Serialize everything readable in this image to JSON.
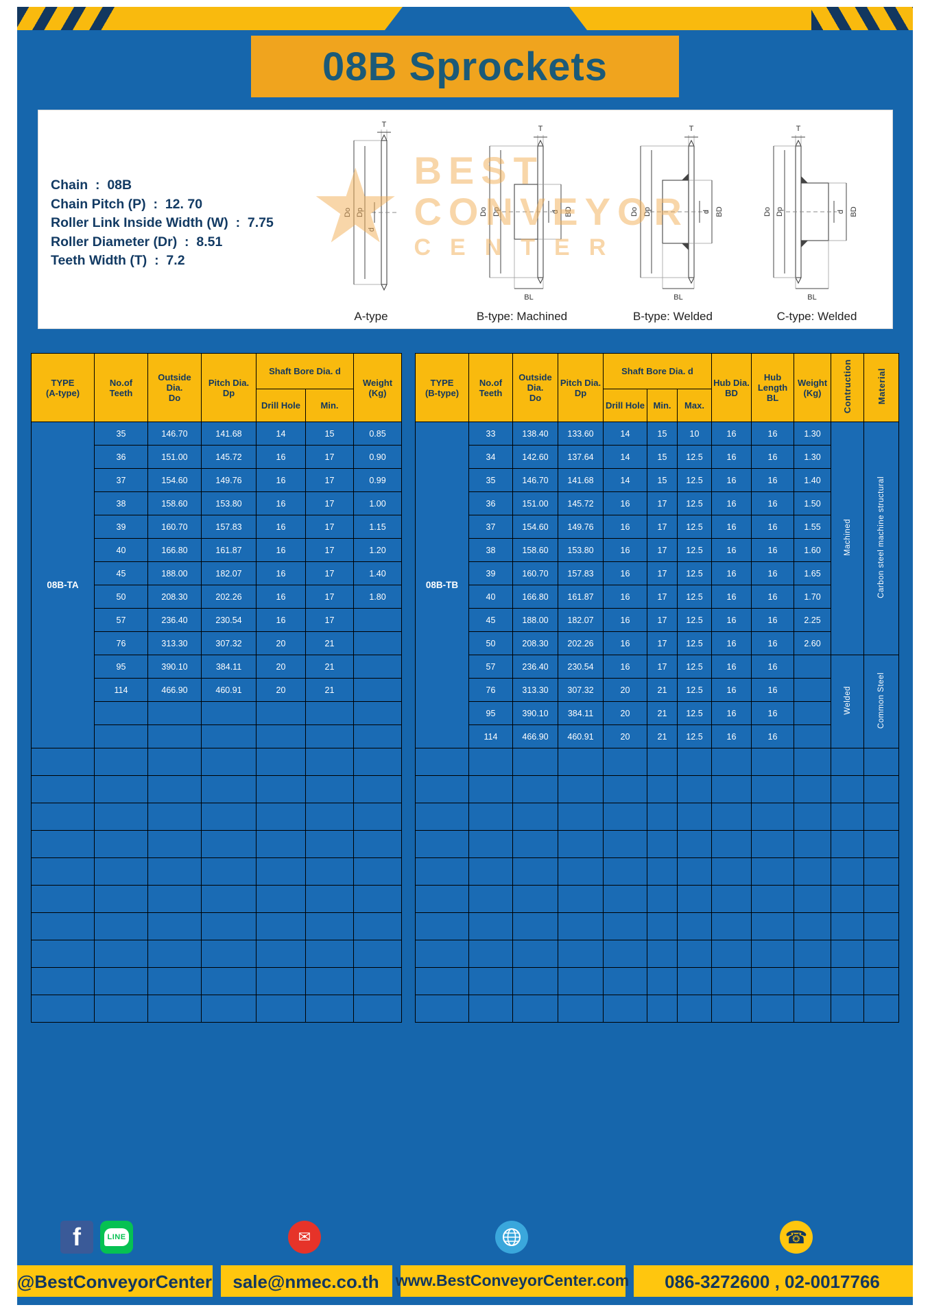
{
  "banner": {
    "title": "08B Sprockets"
  },
  "specs": {
    "lines": [
      "Chain  :  08B",
      "Chain Pitch (P)  :  12. 70",
      "Roller Link Inside Width (W)  :  7.75",
      "Roller Diameter (Dr)  :  8.51",
      "Teeth Width (T)  :  7.2"
    ]
  },
  "watermark": {
    "line1": "BEST",
    "line2": "CONVEYOR",
    "line3": "CENTER",
    "star": "★"
  },
  "diagrams": {
    "captions": [
      "A-type",
      "B-type: Machined",
      "B-type: Welded",
      "C-type: Welded"
    ],
    "labels": {
      "t": "T",
      "do": "Do",
      "dp": "Dp",
      "d": "d",
      "bd": "BD",
      "bl": "BL"
    }
  },
  "colors": {
    "page_blue": "#1666ac",
    "cell_blue": "#1a6bb4",
    "header_yellow": "#f9ba0e",
    "banner_orange": "#f0a41e",
    "footer_yellow": "#ffc60e",
    "navy_text": "#12375f",
    "title_teal": "#1b5a78"
  },
  "tables": [
    {
      "id": "table-a",
      "type_label": "08B-TA",
      "header": {
        "type": "TYPE\n(A-type)",
        "teeth": "No.of\nTeeth",
        "outside": "Outside\nDia.\nDo",
        "pitch": "Pitch Dia.\nDp",
        "shaft": "Shaft Bore Dia. d",
        "drill": "Drill Hole",
        "min": "Min.",
        "weight": "Weight\n(Kg)"
      },
      "rows": [
        [
          "35",
          "146.70",
          "141.68",
          "14",
          "15",
          "0.85"
        ],
        [
          "36",
          "151.00",
          "145.72",
          "16",
          "17",
          "0.90"
        ],
        [
          "37",
          "154.60",
          "149.76",
          "16",
          "17",
          "0.99"
        ],
        [
          "38",
          "158.60",
          "153.80",
          "16",
          "17",
          "1.00"
        ],
        [
          "39",
          "160.70",
          "157.83",
          "16",
          "17",
          "1.15"
        ],
        [
          "40",
          "166.80",
          "161.87",
          "16",
          "17",
          "1.20"
        ],
        [
          "45",
          "188.00",
          "182.07",
          "16",
          "17",
          "1.40"
        ],
        [
          "50",
          "208.30",
          "202.26",
          "16",
          "17",
          "1.80"
        ],
        [
          "57",
          "236.40",
          "230.54",
          "16",
          "17",
          ""
        ],
        [
          "76",
          "313.30",
          "307.32",
          "20",
          "21",
          ""
        ],
        [
          "95",
          "390.10",
          "384.11",
          "20",
          "21",
          ""
        ],
        [
          "114",
          "466.90",
          "460.91",
          "20",
          "21",
          ""
        ]
      ],
      "empty_body_rows": 2,
      "trailing_empty_rows": 10,
      "cols_data": 6,
      "cols_total": 7
    },
    {
      "id": "table-b",
      "type_label": "08B-TB",
      "header": {
        "type": "TYPE\n(B-type)",
        "teeth": "No.of\nTeeth",
        "outside": "Outside\nDia.\nDo",
        "pitch": "Pitch Dia.\nDp",
        "shaft": "Shaft Bore Dia. d",
        "drill": "Drill Hole",
        "min": "Min.",
        "max": "Max.",
        "hub_dia": "Hub Dia.\nBD",
        "hub_len": "Hub\nLength\nBL",
        "weight": "Weight\n(Kg)",
        "contruction": "Contruction",
        "material": "Material"
      },
      "rows": [
        [
          "33",
          "138.40",
          "133.60",
          "14",
          "15",
          "10",
          "16",
          "16",
          "1.30"
        ],
        [
          "34",
          "142.60",
          "137.64",
          "14",
          "15",
          "12.5",
          "16",
          "16",
          "1.30"
        ],
        [
          "35",
          "146.70",
          "141.68",
          "14",
          "15",
          "12.5",
          "16",
          "16",
          "1.40"
        ],
        [
          "36",
          "151.00",
          "145.72",
          "16",
          "17",
          "12.5",
          "16",
          "16",
          "1.50"
        ],
        [
          "37",
          "154.60",
          "149.76",
          "16",
          "17",
          "12.5",
          "16",
          "16",
          "1.55"
        ],
        [
          "38",
          "158.60",
          "153.80",
          "16",
          "17",
          "12.5",
          "16",
          "16",
          "1.60"
        ],
        [
          "39",
          "160.70",
          "157.83",
          "16",
          "17",
          "12.5",
          "16",
          "16",
          "1.65"
        ],
        [
          "40",
          "166.80",
          "161.87",
          "16",
          "17",
          "12.5",
          "16",
          "16",
          "1.70"
        ],
        [
          "45",
          "188.00",
          "182.07",
          "16",
          "17",
          "12.5",
          "16",
          "16",
          "2.25"
        ],
        [
          "50",
          "208.30",
          "202.26",
          "16",
          "17",
          "12.5",
          "16",
          "16",
          "2.60"
        ],
        [
          "57",
          "236.40",
          "230.54",
          "16",
          "17",
          "12.5",
          "16",
          "16",
          ""
        ],
        [
          "76",
          "313.30",
          "307.32",
          "20",
          "21",
          "12.5",
          "16",
          "16",
          ""
        ],
        [
          "95",
          "390.10",
          "384.11",
          "20",
          "21",
          "12.5",
          "16",
          "16",
          ""
        ],
        [
          "114",
          "466.90",
          "460.91",
          "20",
          "21",
          "12.5",
          "16",
          "16",
          ""
        ]
      ],
      "groups": [
        {
          "name": "contruction-cell",
          "segments": [
            {
              "label": "Machined",
              "span": 10
            },
            {
              "label": "Welded",
              "span": 4
            }
          ]
        },
        {
          "name": "material-cell",
          "segments": [
            {
              "label": "Carbon steel  machine structural",
              "span": 10
            },
            {
              "label": "Common  Steel",
              "span": 4
            }
          ]
        }
      ],
      "empty_body_rows": 0,
      "trailing_empty_rows": 10,
      "cols_data": 9,
      "cols_total": 12
    }
  ],
  "footer": {
    "handle": "@BestConveyorCenter",
    "email": "sale@nmec.co.th",
    "website": "www.BestConveyorCenter.com",
    "phone": "086-3272600 , 02-0017766",
    "facebook_f": "f",
    "line_label": "LINE",
    "mail_glyph": "✉",
    "phone_glyph": "☎"
  }
}
